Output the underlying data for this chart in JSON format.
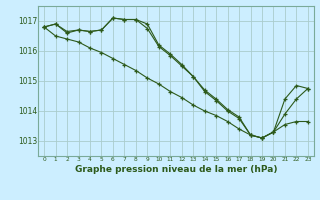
{
  "title": "Graphe pression niveau de la mer (hPa)",
  "background_color": "#cceeff",
  "grid_color": "#aacccc",
  "line_color": "#2d5a1b",
  "ylim": [
    1012.5,
    1017.5
  ],
  "xlim": [
    -0.5,
    23.5
  ],
  "yticks": [
    1013,
    1014,
    1015,
    1016,
    1017
  ],
  "xticks": [
    0,
    1,
    2,
    3,
    4,
    5,
    6,
    7,
    8,
    9,
    10,
    11,
    12,
    13,
    14,
    15,
    16,
    17,
    18,
    19,
    20,
    21,
    22,
    23
  ],
  "series": [
    [
      1016.8,
      1016.9,
      1016.6,
      1016.7,
      1016.65,
      1016.7,
      1017.1,
      1017.05,
      1017.05,
      1016.9,
      1016.2,
      1015.9,
      1015.55,
      1015.15,
      1014.65,
      1014.35,
      1014.0,
      1013.75,
      1013.2,
      1013.1,
      1013.3,
      1014.4,
      1014.85,
      1014.75
    ],
    [
      1016.8,
      1016.5,
      1016.4,
      1016.3,
      1016.1,
      1015.95,
      1015.75,
      1015.55,
      1015.35,
      1015.1,
      1014.9,
      1014.65,
      1014.45,
      1014.2,
      1014.0,
      1013.85,
      1013.65,
      1013.4,
      1013.2,
      1013.1,
      1013.3,
      1013.55,
      1013.65,
      1013.65
    ],
    [
      1016.8,
      1016.9,
      1016.65,
      1016.7,
      1016.65,
      1016.7,
      1017.1,
      1017.05,
      1017.05,
      1016.75,
      1016.15,
      1015.85,
      1015.5,
      1015.15,
      1014.7,
      1014.4,
      1014.05,
      1013.8,
      1013.2,
      1013.1,
      1013.3,
      1013.9,
      1014.4,
      1014.75
    ]
  ],
  "title_fontsize": 6.5,
  "ylabel_fontsize": 6.0,
  "xlabel_fontsize": 5.0,
  "spine_color": "#7aaa99"
}
